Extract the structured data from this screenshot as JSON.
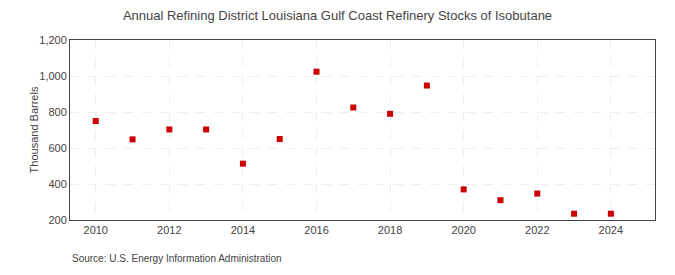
{
  "chart_data": {
    "type": "scatter",
    "title": "Annual Refining District Louisiana Gulf Coast Refinery Stocks of Isobutane",
    "ylabel": "Thousand Barrels",
    "annotations": [
      "Source: U.S. Energy Information Administration"
    ],
    "x": [
      2010,
      2011,
      2012,
      2013,
      2014,
      2015,
      2016,
      2017,
      2018,
      2019,
      2020,
      2021,
      2022,
      2023,
      2024
    ],
    "values": [
      750,
      648,
      703,
      703,
      513,
      650,
      1024,
      825,
      790,
      947,
      370,
      310,
      347,
      235,
      235
    ],
    "color": "#cc0000",
    "marker": "square",
    "xlim": [
      2009.3,
      2025.2
    ],
    "xticks": [
      2010,
      2012,
      2014,
      2016,
      2018,
      2020,
      2022,
      2024
    ],
    "ylim": [
      200,
      1200
    ],
    "yticks": [
      200,
      400,
      600,
      800,
      {
        "value": 1000,
        "label": "1,000"
      },
      {
        "value": 1200,
        "label": "1,200"
      }
    ],
    "grid": true
  }
}
